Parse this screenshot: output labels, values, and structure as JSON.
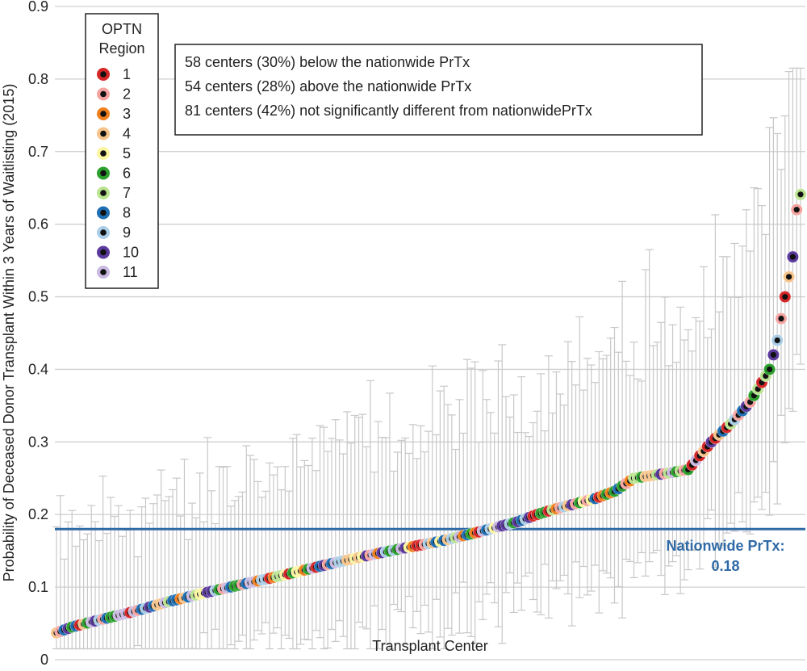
{
  "chart_data": {
    "type": "scatter",
    "title": "",
    "xlabel": "Transplant Center",
    "ylabel": "Probability of Deceased Donor Transplant Within 3 Years of Waitlisting (2015)",
    "ylim": [
      0,
      0.9
    ],
    "yticks": [
      "0",
      "0.1",
      "0.2",
      "0.3",
      "0.4",
      "0.5",
      "0.6",
      "0.7",
      "0.8",
      "0.9"
    ],
    "grid": true,
    "n_centers": 193,
    "error_bars": true,
    "legend": {
      "title_line1": "OPTN",
      "title_line2": "Region",
      "placement": "top-left",
      "entries": [
        {
          "label": "1",
          "color": "#d62728"
        },
        {
          "label": "2",
          "color": "#f4a3a0"
        },
        {
          "label": "3",
          "color": "#f07f1d"
        },
        {
          "label": "4",
          "color": "#f6c48a"
        },
        {
          "label": "5",
          "color": "#fbf5a0"
        },
        {
          "label": "6",
          "color": "#2ca02c"
        },
        {
          "label": "7",
          "color": "#b9e38f"
        },
        {
          "label": "8",
          "color": "#1f6fb4"
        },
        {
          "label": "9",
          "color": "#a9cde6"
        },
        {
          "label": "10",
          "color": "#5b3a9e"
        },
        {
          "label": "11",
          "color": "#c9b8e0"
        }
      ]
    },
    "annotations": [
      "58 centers (30%) below the nationwide PrTx",
      "54 centers (28%) above the nationwide PrTx",
      "81 centers (42%) not significantly different from nationwidePrTx"
    ],
    "reference_line": {
      "value": 0.18,
      "label_line1": "Nationwide PrTx:",
      "label_line2": "0.18",
      "color": "#2f6aa6"
    },
    "curve_points": [
      [
        1,
        0.037
      ],
      [
        5,
        0.045
      ],
      [
        10,
        0.052
      ],
      [
        20,
        0.065
      ],
      [
        30,
        0.08
      ],
      [
        40,
        0.093
      ],
      [
        50,
        0.105
      ],
      [
        60,
        0.117
      ],
      [
        70,
        0.13
      ],
      [
        80,
        0.142
      ],
      [
        90,
        0.153
      ],
      [
        100,
        0.163
      ],
      [
        110,
        0.176
      ],
      [
        120,
        0.19
      ],
      [
        125,
        0.2
      ],
      [
        130,
        0.208
      ],
      [
        140,
        0.222
      ],
      [
        145,
        0.232
      ],
      [
        150,
        0.25
      ],
      [
        160,
        0.258
      ],
      [
        164,
        0.262
      ],
      [
        170,
        0.3
      ],
      [
        175,
        0.325
      ],
      [
        180,
        0.355
      ],
      [
        185,
        0.4
      ],
      [
        187,
        0.44
      ],
      [
        189,
        0.5
      ],
      [
        191,
        0.555
      ],
      [
        192,
        0.62
      ],
      [
        193,
        0.641
      ]
    ]
  }
}
